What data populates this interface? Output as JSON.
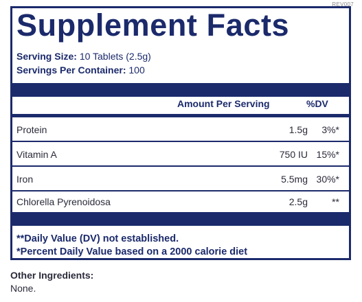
{
  "revision": "REV007",
  "panel": {
    "title": "Supplement Facts",
    "serving_size_label": "Serving Size:",
    "serving_size_value": "10 Tablets (2.5g)",
    "servings_per_container_label": "Servings Per Container:",
    "servings_per_container_value": "100",
    "header": {
      "amount_label": "Amount Per Serving",
      "dv_label": "%DV"
    },
    "rows": [
      {
        "name": "Protein",
        "amount": "1.5g",
        "dv": "3%*"
      },
      {
        "name": "Vitamin A",
        "amount": "750 IU",
        "dv": "15%*"
      },
      {
        "name": "Iron",
        "amount": "5.5mg",
        "dv": "30%*"
      },
      {
        "name": "Chlorella Pyrenoidosa",
        "amount": "2.5g",
        "dv": "**"
      }
    ],
    "footnotes": [
      "**Daily Value (DV) not established.",
      "*Percent Daily Value based on a 2000 calorie diet"
    ]
  },
  "other_ingredients": {
    "label": "Other Ingredients:",
    "value": "None."
  },
  "colors": {
    "navy": "#1b2a6b",
    "text": "#2a2a3a"
  }
}
